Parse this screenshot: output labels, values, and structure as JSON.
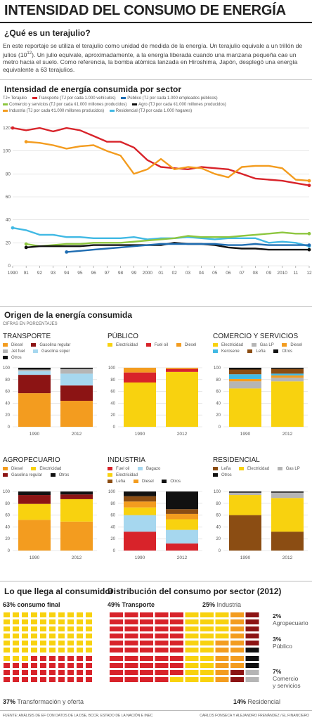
{
  "title": "INTENSIDAD DEL CONSUMO DE ENERGÍA",
  "section1": {
    "heading": "¿Qué es un terajulio?"
  },
  "intro": {
    "p1": "En este reportaje se utiliza el terajulio como unidad de medida de la energía. Un terajulio equivale a un trillón de julios (10",
    "p1_sup": "12",
    "p2": "). Un julio  equivale, aproximadamente, a la energía liberada cuando una manzana pequeña cae un metro hacia el suelo. Como referencia, la bomba atómica lanzada en Hiroshima, Japón, desplegó una energía equivalente a 63 terajulios."
  },
  "colors": {
    "red": "#d8232a",
    "orange": "#f39c1f",
    "yellow": "#f8d20f",
    "cyan": "#41b9e4",
    "blue": "#1f6db2",
    "green": "#8dc63f",
    "black": "#111111",
    "darkred": "#8c1414",
    "brown": "#8b4d13",
    "gray": "#b5b5b5",
    "lightblue": "#a6d7ef",
    "pale": "#f7dc8a"
  },
  "chart1_heading": "Intensidad de energía consumida por sector",
  "chart1_legend": {
    "tj": "TJ= Terajulio",
    "items": [
      {
        "label": "Transporte (TJ por cada 1.000 vehículos)",
        "color": "#d8232a"
      },
      {
        "label": "Público (TJ por cada 1.000 empleados públicos)",
        "color": "#1f6db2"
      },
      {
        "label": "Comercio y servicios (TJ por cada ¢1.000 millones producidos)",
        "color": "#8dc63f"
      },
      {
        "label": "Agro (TJ por cada ¢1.000 millones producidos)",
        "color": "#111111"
      },
      {
        "label": "Industria  (TJ por cada ¢1.000 millones producidos)",
        "color": "#f39c1f"
      },
      {
        "label": "Residencial (TJ por cada 1.000 hogares)",
        "color": "#41b9e4"
      }
    ]
  },
  "chart_data": [
    {
      "type": "line",
      "title": "Intensidad de energía consumida por sector",
      "x": [
        1990,
        1991,
        1992,
        1993,
        1994,
        1995,
        1996,
        1997,
        1998,
        1999,
        2000,
        2001,
        2002,
        2003,
        2004,
        2005,
        2006,
        2007,
        2008,
        2009,
        2010,
        2011,
        2012
      ],
      "x_tick_labels": [
        "1990",
        "91",
        "92",
        "93",
        "94",
        "95",
        "96",
        "97",
        "98",
        "99",
        "2000",
        "01",
        "02",
        "03",
        "04",
        "05",
        "06",
        "07",
        "08",
        "09",
        "2010",
        "11",
        "12"
      ],
      "ylim": [
        0,
        120
      ],
      "y_ticks": [
        0,
        20,
        40,
        60,
        80,
        100,
        120
      ],
      "grid": true,
      "series": [
        {
          "name": "Transporte",
          "color": "#d8232a",
          "values": [
            120,
            118,
            120,
            117,
            120,
            118,
            113,
            108,
            108,
            103,
            92,
            86,
            85,
            84,
            86,
            85,
            84,
            80,
            76,
            75,
            74,
            72,
            70
          ]
        },
        {
          "name": "Industria",
          "color": "#f39c1f",
          "values": [
            null,
            108,
            107,
            105,
            102,
            104,
            105,
            100,
            96,
            80,
            84,
            93,
            84,
            86,
            85,
            80,
            77,
            86,
            87,
            87,
            85,
            75,
            74
          ]
        },
        {
          "name": "Residencial",
          "color": "#41b9e4",
          "values": [
            33,
            31,
            27,
            27,
            25,
            25,
            24,
            24,
            24,
            25,
            23,
            24,
            24,
            25,
            24,
            23,
            24,
            24,
            24,
            20,
            21,
            20,
            17
          ]
        },
        {
          "name": "Comercio y servicios",
          "color": "#8dc63f",
          "values": [
            null,
            19,
            17,
            18,
            19,
            19,
            20,
            20,
            20,
            21,
            22,
            23,
            24,
            26,
            25,
            25,
            25,
            26,
            27,
            28,
            29,
            28,
            28
          ]
        },
        {
          "name": "Agro",
          "color": "#111111",
          "values": [
            null,
            16,
            17,
            17,
            17,
            17,
            18,
            18,
            18,
            18,
            18,
            18,
            20,
            19,
            19,
            18,
            16,
            15,
            15,
            14,
            14,
            14,
            14
          ]
        },
        {
          "name": "Público",
          "color": "#1f6db2",
          "values": [
            null,
            null,
            null,
            null,
            12,
            13,
            14,
            15,
            16,
            17,
            18,
            19,
            19,
            19,
            19,
            19,
            18,
            18,
            19,
            18,
            18,
            18,
            18
          ]
        }
      ]
    },
    {
      "type": "bar",
      "stacked": true,
      "title": "TRANSPORTE",
      "categories": [
        "1990",
        "2012"
      ],
      "ylim": [
        0,
        100
      ],
      "series": [
        {
          "name": "Diesel",
          "color": "#f39c1f",
          "values": [
            57,
            44
          ]
        },
        {
          "name": "Gasolina regular",
          "color": "#8c1414",
          "values": [
            31,
            26
          ]
        },
        {
          "name": "Gasolina súper",
          "color": "#a6d7ef",
          "values": [
            6,
            20
          ]
        },
        {
          "name": "Jet fuel",
          "color": "#b5b5b5",
          "values": [
            3,
            8
          ]
        },
        {
          "name": "Otros",
          "color": "#111111",
          "values": [
            3,
            2
          ]
        }
      ]
    },
    {
      "type": "bar",
      "stacked": true,
      "title": "PÚBLICO",
      "categories": [
        "1990",
        "2012"
      ],
      "ylim": [
        0,
        100
      ],
      "series": [
        {
          "name": "Electricidad",
          "color": "#f8d20f",
          "values": [
            75,
            93
          ]
        },
        {
          "name": "Fuel oil",
          "color": "#d8232a",
          "values": [
            17,
            5
          ]
        },
        {
          "name": "Diesel",
          "color": "#f39c1f",
          "values": [
            8,
            2
          ]
        }
      ]
    },
    {
      "type": "bar",
      "stacked": true,
      "title": "COMERCIO Y SERVICIOS",
      "categories": [
        "1990",
        "2012"
      ],
      "ylim": [
        0,
        100
      ],
      "series": [
        {
          "name": "Electricidad",
          "color": "#f8d20f",
          "values": [
            65,
            77
          ]
        },
        {
          "name": "Gas LP",
          "color": "#b5b5b5",
          "values": [
            12,
            6
          ]
        },
        {
          "name": "Diesel",
          "color": "#f39c1f",
          "values": [
            4,
            4
          ]
        },
        {
          "name": "Kerosene",
          "color": "#41b9e4",
          "values": [
            8,
            3
          ]
        },
        {
          "name": "Leña",
          "color": "#8b4d13",
          "values": [
            8,
            8
          ]
        },
        {
          "name": "Otros",
          "color": "#111111",
          "values": [
            3,
            2
          ]
        }
      ]
    },
    {
      "type": "bar",
      "stacked": true,
      "title": "AGROPECUARIO",
      "categories": [
        "1990",
        "2012"
      ],
      "ylim": [
        0,
        100
      ],
      "series": [
        {
          "name": "Diesel",
          "color": "#f39c1f",
          "values": [
            52,
            49
          ]
        },
        {
          "name": "Electricidad",
          "color": "#f8d20f",
          "values": [
            27,
            38
          ]
        },
        {
          "name": "Gasolina regular",
          "color": "#8c1414",
          "values": [
            15,
            8
          ]
        },
        {
          "name": "Otros",
          "color": "#111111",
          "values": [
            6,
            5
          ]
        }
      ]
    },
    {
      "type": "bar",
      "stacked": true,
      "title": "INDUSTRIA",
      "categories": [
        "1990",
        "2012"
      ],
      "ylim": [
        0,
        100
      ],
      "series": [
        {
          "name": "Fuel oil",
          "color": "#d8232a",
          "values": [
            32,
            12
          ]
        },
        {
          "name": "Bagazo",
          "color": "#a6d7ef",
          "values": [
            28,
            23
          ]
        },
        {
          "name": "Electricidad",
          "color": "#f8d20f",
          "values": [
            13,
            18
          ]
        },
        {
          "name": "Diesel",
          "color": "#f39c1f",
          "values": [
            10,
            9
          ]
        },
        {
          "name": "Leña",
          "color": "#8b4d13",
          "values": [
            9,
            8
          ]
        },
        {
          "name": "Otros",
          "color": "#111111",
          "values": [
            8,
            30
          ]
        }
      ]
    },
    {
      "type": "bar",
      "stacked": true,
      "title": "RESIDENCIAL",
      "categories": [
        "1990",
        "2012"
      ],
      "ylim": [
        0,
        100
      ],
      "series": [
        {
          "name": "Leña",
          "color": "#8b4d13",
          "values": [
            60,
            32
          ]
        },
        {
          "name": "Electricidad",
          "color": "#f8d20f",
          "values": [
            34,
            57
          ]
        },
        {
          "name": "Gas LP",
          "color": "#b5b5b5",
          "values": [
            4,
            9
          ]
        },
        {
          "name": "Otros",
          "color": "#111111",
          "values": [
            2,
            2
          ]
        }
      ]
    },
    {
      "type": "waffle",
      "title": "Lo que llega al consumidor",
      "total": 100,
      "series": [
        {
          "name": "consumo final",
          "value": 63,
          "color": "#f8d20f"
        },
        {
          "name": "Transformación y oferta",
          "value": 37,
          "color": "#d8232a"
        }
      ]
    },
    {
      "type": "waffle",
      "title": "Distribución del consumo por sector (2012)",
      "total": 100,
      "series": [
        {
          "name": "Transporte",
          "value": 49,
          "color": "#d8232a"
        },
        {
          "name": "Industria",
          "value": 25,
          "color": "#f8d20f"
        },
        {
          "name": "Residencial",
          "value": 14,
          "color": "#f39c1f"
        },
        {
          "name": "Comercio y servicios",
          "value": 7,
          "color": "#8c1414"
        },
        {
          "name": "Público",
          "value": 3,
          "color": "#111111"
        },
        {
          "name": "Agropecuario",
          "value": 2,
          "color": "#b5b5b5"
        }
      ]
    }
  ],
  "section2": {
    "heading": "Origen de la energía consumida",
    "note": "CIFRAS EN PORCENTAJES"
  },
  "section3": {
    "left_heading": "Lo que llega al consumidor",
    "left_top_pct": "63%",
    "left_top_label": "consumo final",
    "left_bottom_pct": "37%",
    "left_bottom_label": "Transformación y oferta",
    "right_heading": "Distribución del consumo por sector (2012)",
    "right_labels": {
      "transporte_pct": "49%",
      "transporte": "Transporte",
      "industria_pct": "25%",
      "industria": "Industria",
      "agro_pct": "2%",
      "agro": "Agropecuario",
      "publico_pct": "3%",
      "publico": "Público",
      "comercio_pct": "7%",
      "comercio1": "Comercio",
      "comercio2": "y servicios",
      "residencial_pct": "14%",
      "residencial": "Residencial"
    }
  },
  "footer": {
    "source": "FUENTE: ANÁLISIS DE EF CON DATOS DE LA DSE, BCCR, ESTADO DE LA NACIÓN E INEC",
    "credits": "CARLOS FONSECA Y ALEJANDRO FRENÁNDEZ / EL FINANCIERO"
  }
}
